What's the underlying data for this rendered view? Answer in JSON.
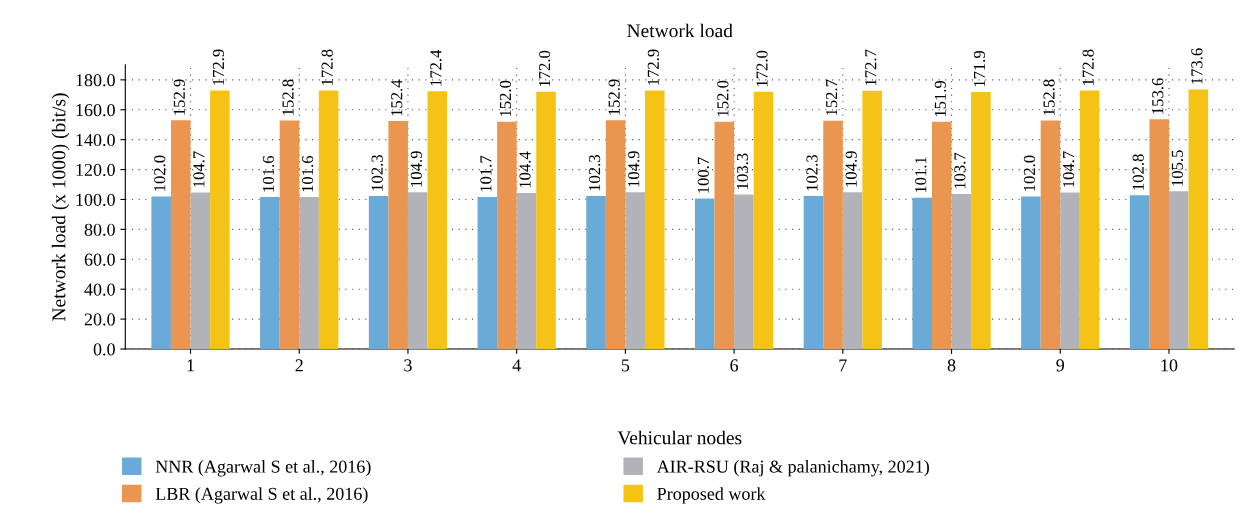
{
  "chart_data": {
    "type": "bar",
    "title": "Network load",
    "xlabel": "Vehicular nodes",
    "ylabel": "Network load (x 1000) (bit/s)",
    "categories": [
      "1",
      "2",
      "3",
      "4",
      "5",
      "6",
      "7",
      "8",
      "9",
      "10"
    ],
    "series": [
      {
        "name": "NNR (Agarwal S et al., 2016)",
        "color": "#6aaad8",
        "values": [
          102.0,
          101.6,
          102.3,
          101.7,
          102.3,
          100.7,
          102.3,
          101.1,
          102.0,
          102.8
        ],
        "value_labels": [
          "102.0",
          "101.6",
          "102.3",
          "101.7",
          "102.3",
          "100.7",
          "102.3",
          "101.1",
          "102.0",
          "102.8"
        ]
      },
      {
        "name": "LBR (Agarwal S et al., 2016)",
        "color": "#eb9650",
        "values": [
          152.9,
          152.8,
          152.4,
          152.0,
          152.9,
          152.0,
          152.7,
          151.9,
          152.8,
          153.6
        ],
        "value_labels": [
          "152.9",
          "152.8",
          "152.4",
          "152.0",
          "152.9",
          "152.0",
          "152.7",
          "151.9",
          "152.8",
          "153.6"
        ]
      },
      {
        "name": "AIR-RSU (Raj & palanichamy, 2021)",
        "color": "#b1b3b8",
        "values": [
          104.7,
          101.6,
          104.9,
          104.4,
          104.9,
          103.3,
          104.9,
          103.7,
          104.7,
          105.5
        ],
        "value_labels": [
          "104.7",
          "101.6",
          "104.9",
          "104.4",
          "104.9",
          "103.3",
          "104.9",
          "103.7",
          "104.7",
          "105.5"
        ]
      },
      {
        "name": "Proposed work",
        "color": "#f5c316",
        "values": [
          172.9,
          172.8,
          172.4,
          172.0,
          172.9,
          172.0,
          172.7,
          171.9,
          172.8,
          173.6
        ],
        "value_labels": [
          "172.9",
          "172.8",
          "172.4",
          "172.0",
          "172.9",
          "172.0",
          "172.7",
          "171.9",
          "172.8",
          "173.6"
        ]
      }
    ],
    "ylim": [
      0,
      190
    ],
    "yticks": [
      {
        "value": 0,
        "label": "0.0"
      },
      {
        "value": 20,
        "label": "20.0"
      },
      {
        "value": 40,
        "label": "40.0"
      },
      {
        "value": 60,
        "label": "60.0"
      },
      {
        "value": 80,
        "label": "80.0"
      },
      {
        "value": 100,
        "label": "100.0"
      },
      {
        "value": 120,
        "label": "120.0"
      },
      {
        "value": 140,
        "label": "140.0"
      },
      {
        "value": 160,
        "label": "160.0"
      },
      {
        "value": 180,
        "label": "180.0"
      }
    ],
    "grid": true,
    "legend": "bottom"
  }
}
